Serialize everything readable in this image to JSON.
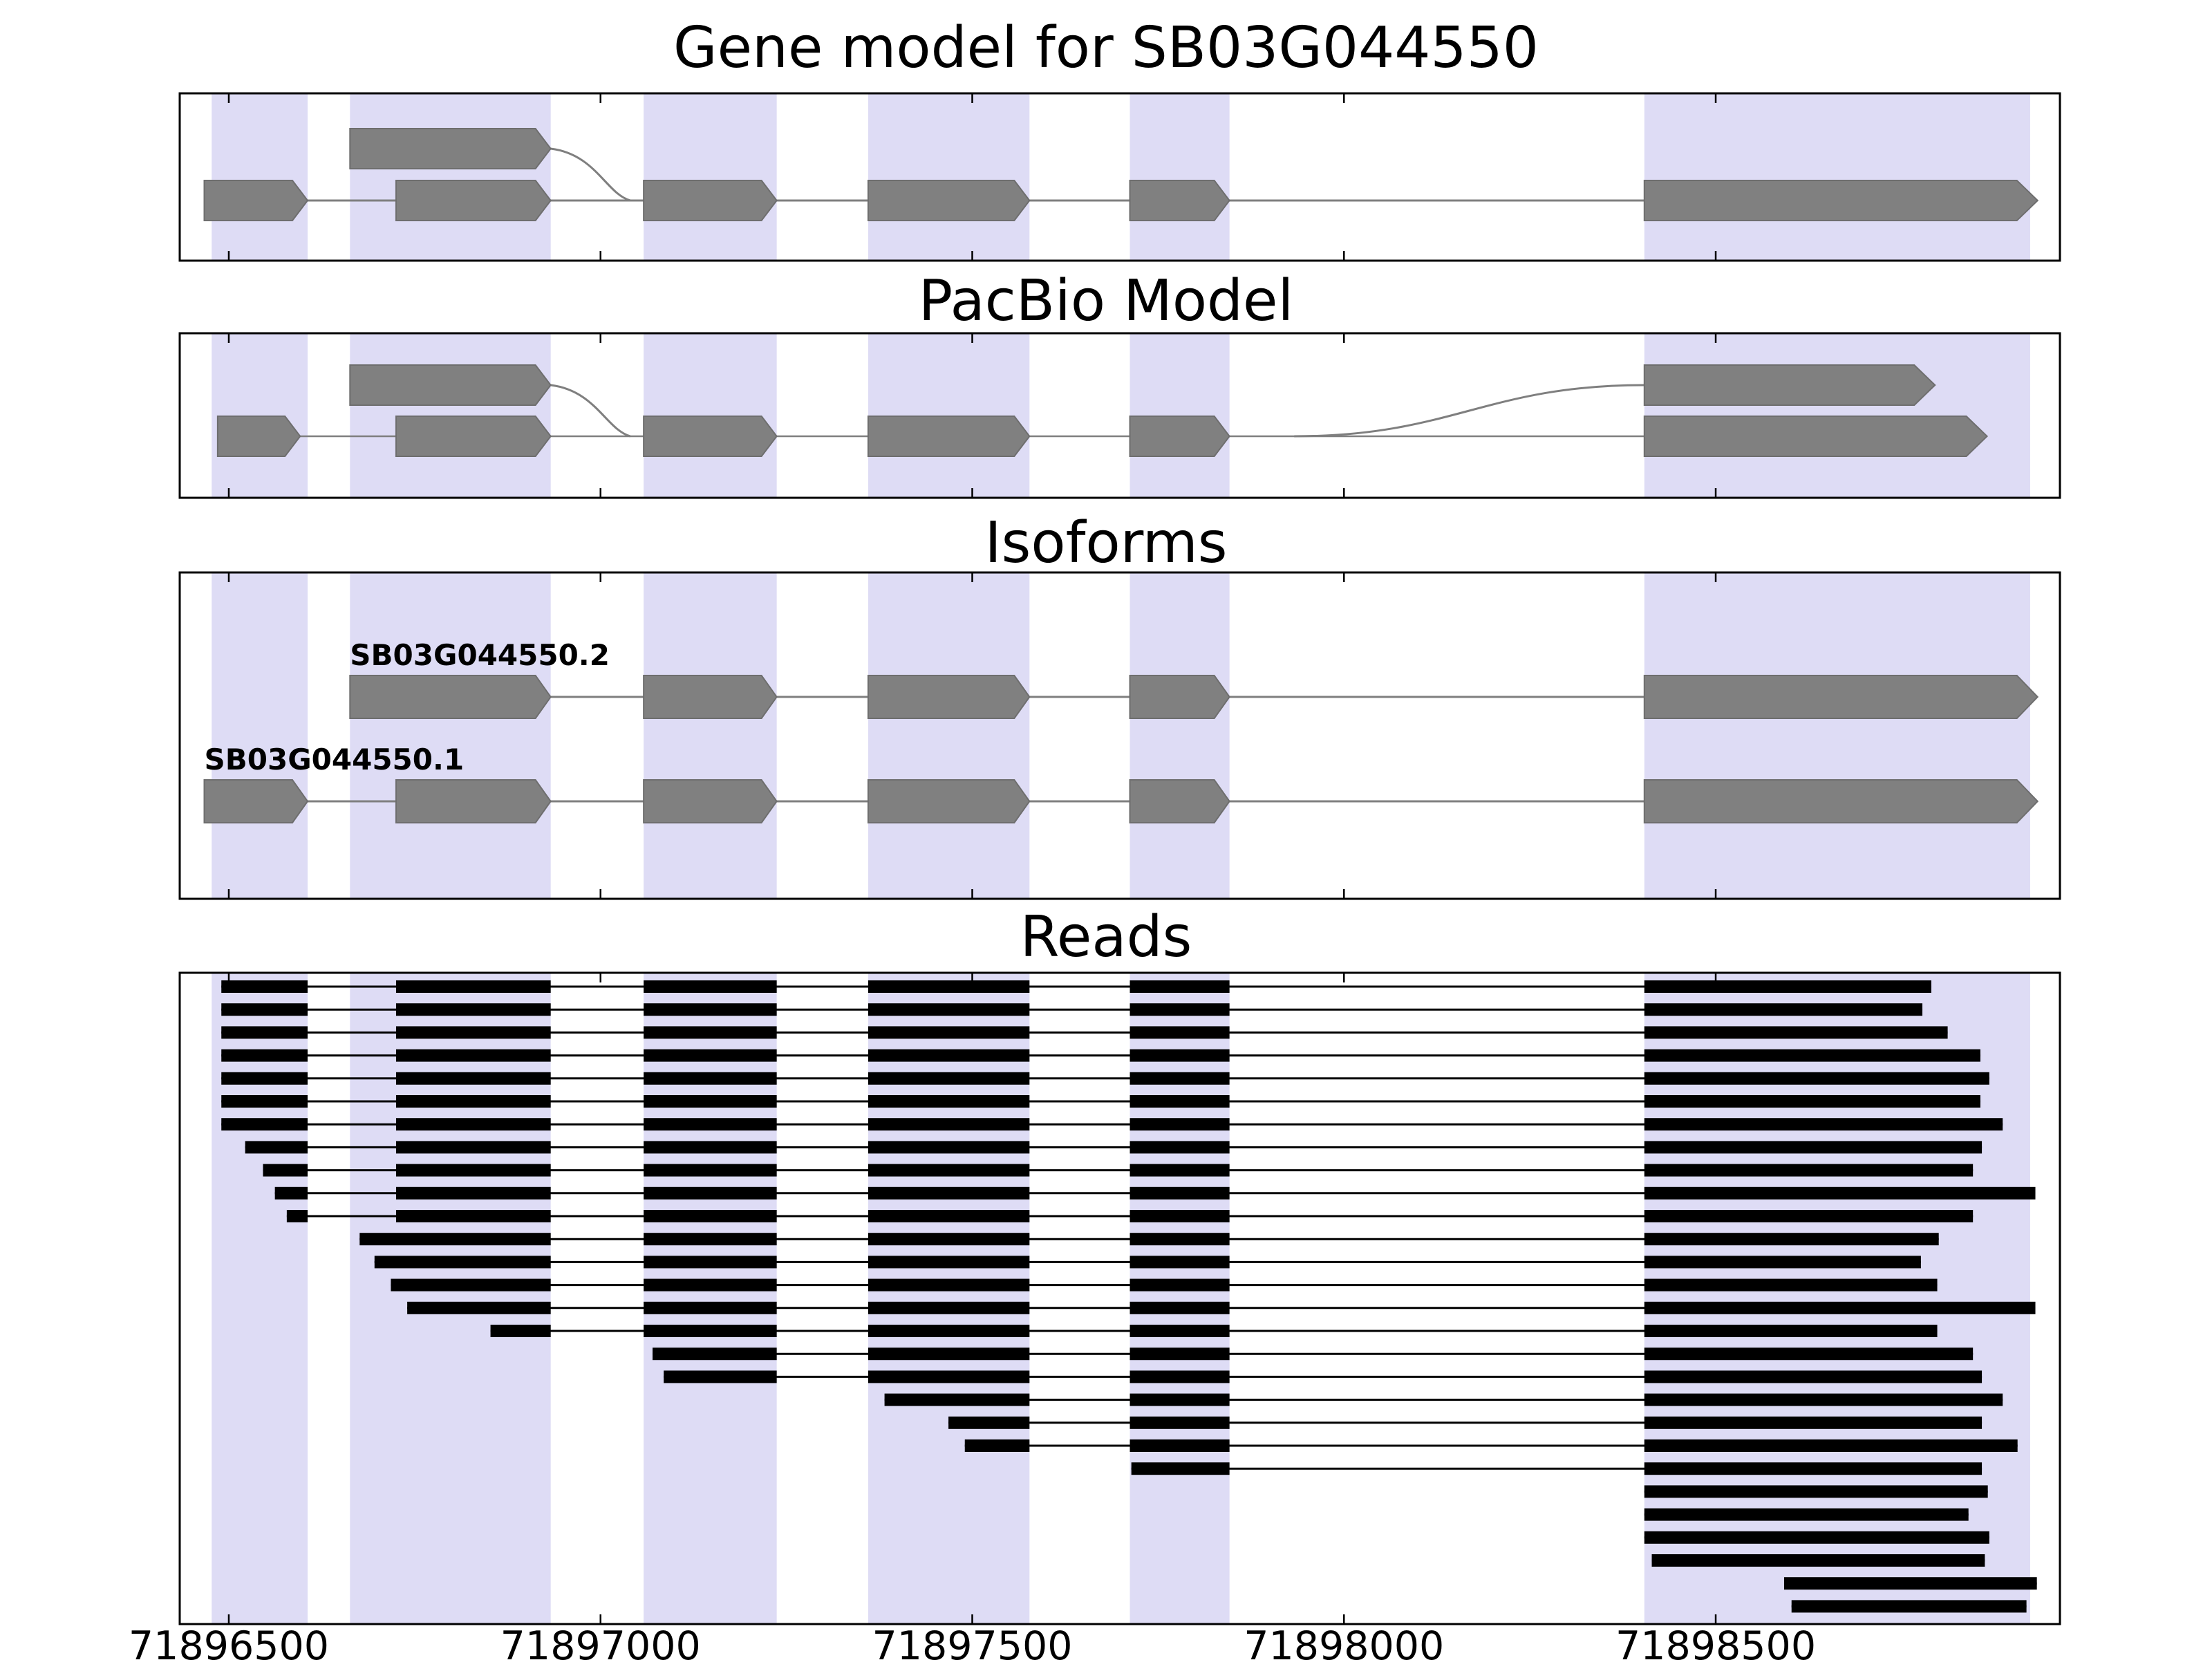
{
  "chart_data": {
    "type": "gene-model-tracks",
    "gene_id": "SB03G044550",
    "titles": {
      "gene_model": "Gene model for SB03G044550",
      "pacbio": "PacBio Model",
      "isoforms": "Isoforms",
      "reads": "Reads"
    },
    "x_range": [
      71896434,
      71898963
    ],
    "x_ticks": [
      71896500,
      71897000,
      71897500,
      71898000,
      71898500
    ],
    "x_tick_labels": [
      "71896500",
      "71897000",
      "71897500",
      "71898000",
      "71898500"
    ],
    "colors": {
      "exon_fill": "#808080",
      "exon_edge": "#6e6e6e",
      "band_fill": "#dedcf5",
      "line": "#7f7f7f",
      "read_fill": "#000000",
      "axis": "#000000",
      "background": "#ffffff"
    },
    "exon_bands": [
      [
        71896477,
        71896606
      ],
      [
        71896663,
        71896933
      ],
      [
        71897058,
        71897237
      ],
      [
        71897360,
        71897577
      ],
      [
        71897712,
        71897846
      ],
      [
        71898404,
        71898923
      ]
    ],
    "gene_model": {
      "alt_first_exon": [
        71896663,
        71896933
      ],
      "splice_curve_end": 71897040,
      "exons": [
        [
          71896467,
          71896606
        ],
        [
          71896725,
          71896933
        ],
        [
          71897058,
          71897237
        ],
        [
          71897360,
          71897577
        ],
        [
          71897712,
          71897846
        ],
        [
          71898404,
          71898933
        ]
      ]
    },
    "pacbio_model": {
      "alt_first_exon": [
        71896663,
        71896933
      ],
      "splice_curve_end": 71897040,
      "top_last_exon": [
        71898404,
        71898795
      ],
      "arc_start": 71897933,
      "exons": [
        [
          71896485,
          71896596
        ],
        [
          71896725,
          71896933
        ],
        [
          71897058,
          71897237
        ],
        [
          71897360,
          71897577
        ],
        [
          71897712,
          71897846
        ],
        [
          71898404,
          71898865
        ]
      ]
    },
    "isoforms": [
      {
        "name": "SB03G044550.2",
        "label_anchor": 71896663,
        "exons": [
          [
            71896663,
            71896933
          ],
          [
            71897058,
            71897237
          ],
          [
            71897360,
            71897577
          ],
          [
            71897712,
            71897846
          ],
          [
            71898404,
            71898933
          ]
        ]
      },
      {
        "name": "SB03G044550.1",
        "label_anchor": 71896467,
        "exons": [
          [
            71896467,
            71896606
          ],
          [
            71896725,
            71896933
          ],
          [
            71897058,
            71897237
          ],
          [
            71897360,
            71897577
          ],
          [
            71897712,
            71897846
          ],
          [
            71898404,
            71898933
          ]
        ]
      }
    ],
    "reads": [
      [
        [
          71896490,
          71896606
        ],
        [
          71896725,
          71896933
        ],
        [
          71897058,
          71897237
        ],
        [
          71897360,
          71897577
        ],
        [
          71897712,
          71897846
        ],
        [
          71898404,
          71898790
        ]
      ],
      [
        [
          71896490,
          71896606
        ],
        [
          71896725,
          71896933
        ],
        [
          71897058,
          71897237
        ],
        [
          71897360,
          71897577
        ],
        [
          71897712,
          71897846
        ],
        [
          71898404,
          71898778
        ]
      ],
      [
        [
          71896490,
          71896606
        ],
        [
          71896725,
          71896933
        ],
        [
          71897058,
          71897237
        ],
        [
          71897360,
          71897577
        ],
        [
          71897712,
          71897846
        ],
        [
          71898404,
          71898812
        ]
      ],
      [
        [
          71896490,
          71896606
        ],
        [
          71896725,
          71896933
        ],
        [
          71897058,
          71897237
        ],
        [
          71897360,
          71897577
        ],
        [
          71897712,
          71897846
        ],
        [
          71898404,
          71898856
        ]
      ],
      [
        [
          71896490,
          71896606
        ],
        [
          71896725,
          71896933
        ],
        [
          71897058,
          71897237
        ],
        [
          71897360,
          71897577
        ],
        [
          71897712,
          71897846
        ],
        [
          71898404,
          71898868
        ]
      ],
      [
        [
          71896490,
          71896606
        ],
        [
          71896725,
          71896933
        ],
        [
          71897058,
          71897237
        ],
        [
          71897360,
          71897577
        ],
        [
          71897712,
          71897846
        ],
        [
          71898404,
          71898856
        ]
      ],
      [
        [
          71896490,
          71896606
        ],
        [
          71896725,
          71896933
        ],
        [
          71897058,
          71897237
        ],
        [
          71897360,
          71897577
        ],
        [
          71897712,
          71897846
        ],
        [
          71898404,
          71898886
        ]
      ],
      [
        [
          71896522,
          71896606
        ],
        [
          71896725,
          71896933
        ],
        [
          71897058,
          71897237
        ],
        [
          71897360,
          71897577
        ],
        [
          71897712,
          71897846
        ],
        [
          71898404,
          71898858
        ]
      ],
      [
        [
          71896546,
          71896606
        ],
        [
          71896725,
          71896933
        ],
        [
          71897058,
          71897237
        ],
        [
          71897360,
          71897577
        ],
        [
          71897712,
          71897846
        ],
        [
          71898404,
          71898846
        ]
      ],
      [
        [
          71896562,
          71896606
        ],
        [
          71896725,
          71896933
        ],
        [
          71897058,
          71897237
        ],
        [
          71897360,
          71897577
        ],
        [
          71897712,
          71897846
        ],
        [
          71898404,
          71898930
        ]
      ],
      [
        [
          71896578,
          71896606
        ],
        [
          71896725,
          71896933
        ],
        [
          71897058,
          71897237
        ],
        [
          71897360,
          71897577
        ],
        [
          71897712,
          71897846
        ],
        [
          71898404,
          71898846
        ]
      ],
      [
        [
          71896676,
          71896933
        ],
        [
          71897058,
          71897237
        ],
        [
          71897360,
          71897577
        ],
        [
          71897712,
          71897846
        ],
        [
          71898404,
          71898800
        ]
      ],
      [
        [
          71896696,
          71896933
        ],
        [
          71897058,
          71897237
        ],
        [
          71897360,
          71897577
        ],
        [
          71897712,
          71897846
        ],
        [
          71898404,
          71898776
        ]
      ],
      [
        [
          71896718,
          71896933
        ],
        [
          71897058,
          71897237
        ],
        [
          71897360,
          71897577
        ],
        [
          71897712,
          71897846
        ],
        [
          71898404,
          71898798
        ]
      ],
      [
        [
          71896740,
          71896933
        ],
        [
          71897058,
          71897237
        ],
        [
          71897360,
          71897577
        ],
        [
          71897712,
          71897846
        ],
        [
          71898404,
          71898930
        ]
      ],
      [
        [
          71896852,
          71896933
        ],
        [
          71897058,
          71897237
        ],
        [
          71897360,
          71897577
        ],
        [
          71897712,
          71897846
        ],
        [
          71898404,
          71898798
        ]
      ],
      [
        [
          71897070,
          71897237
        ],
        [
          71897360,
          71897577
        ],
        [
          71897712,
          71897846
        ],
        [
          71898404,
          71898846
        ]
      ],
      [
        [
          71897085,
          71897237
        ],
        [
          71897360,
          71897577
        ],
        [
          71897712,
          71897846
        ],
        [
          71898404,
          71898858
        ]
      ],
      [
        [
          71897382,
          71897577
        ],
        [
          71897712,
          71897846
        ],
        [
          71898404,
          71898886
        ]
      ],
      [
        [
          71897468,
          71897577
        ],
        [
          71897712,
          71897846
        ],
        [
          71898404,
          71898858
        ]
      ],
      [
        [
          71897490,
          71897577
        ],
        [
          71897712,
          71897846
        ],
        [
          71898404,
          71898906
        ]
      ],
      [
        [
          71897714,
          71897846
        ],
        [
          71898404,
          71898858
        ]
      ],
      [
        [
          71898404,
          71898866
        ]
      ],
      [
        [
          71898404,
          71898840
        ]
      ],
      [
        [
          71898404,
          71898868
        ]
      ],
      [
        [
          71898414,
          71898862
        ]
      ],
      [
        [
          71898592,
          71898932
        ]
      ],
      [
        [
          71898602,
          71898918
        ]
      ]
    ]
  }
}
